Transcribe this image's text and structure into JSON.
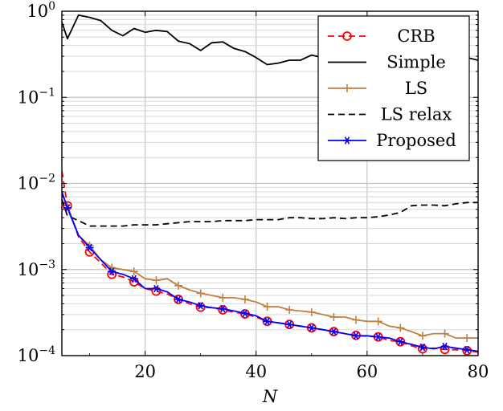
{
  "chart_data": {
    "type": "line",
    "title": "",
    "xlabel": "N",
    "ylabel": "",
    "xlim": [
      5,
      80
    ],
    "ylim": [
      0.0001,
      1
    ],
    "yscale": "log",
    "grid": true,
    "legend_position": "top-right",
    "x_ticks": [
      {
        "value": 20,
        "label": "20"
      },
      {
        "value": 40,
        "label": "40"
      },
      {
        "value": 60,
        "label": "60"
      },
      {
        "value": 80,
        "label": "80"
      }
    ],
    "y_ticks": [
      {
        "value": 1,
        "base": "10",
        "exp": "0"
      },
      {
        "value": 0.1,
        "base": "10",
        "exp": "−1"
      },
      {
        "value": 0.01,
        "base": "10",
        "exp": "−2"
      },
      {
        "value": 0.001,
        "base": "10",
        "exp": "−3"
      },
      {
        "value": 0.0001,
        "base": "10",
        "exp": "−4"
      }
    ],
    "series": [
      {
        "name": "CRB",
        "color": "#ff0000",
        "dash": "8,5",
        "marker": "circle",
        "x": [
          5,
          6,
          8,
          10,
          12,
          14,
          16,
          18,
          20,
          22,
          24,
          26,
          28,
          30,
          32,
          34,
          36,
          38,
          40,
          42,
          44,
          46,
          48,
          50,
          52,
          54,
          56,
          58,
          60,
          62,
          64,
          66,
          68,
          70,
          72,
          74,
          76,
          78,
          80
        ],
        "y": [
          0.014,
          0.0055,
          0.0024,
          0.0016,
          0.0012,
          0.00088,
          0.00082,
          0.00072,
          0.0006,
          0.00056,
          0.00052,
          0.00045,
          0.0004,
          0.000365,
          0.00036,
          0.00034,
          0.00032,
          0.000305,
          0.00028,
          0.00025,
          0.00024,
          0.00023,
          0.00022,
          0.00021,
          0.0002,
          0.00019,
          0.00018,
          0.000172,
          0.000168,
          0.000165,
          0.00015,
          0.000145,
          0.00013,
          0.00012,
          0.000122,
          0.000118,
          0.000117,
          0.000114,
          0.00011
        ],
        "marker_every": 2
      },
      {
        "name": "Simple",
        "color": "#000000",
        "dash": "",
        "marker": "none",
        "x": [
          5,
          6,
          8,
          10,
          12,
          14,
          16,
          18,
          20,
          22,
          24,
          26,
          28,
          30,
          32,
          34,
          36,
          38,
          40,
          42,
          44,
          46,
          48,
          50,
          52,
          54,
          56,
          58,
          60,
          62,
          64,
          66,
          68,
          70,
          72,
          74,
          76,
          78,
          80
        ],
        "y": [
          0.75,
          0.48,
          0.9,
          0.85,
          0.78,
          0.6,
          0.52,
          0.63,
          0.57,
          0.6,
          0.58,
          0.45,
          0.42,
          0.35,
          0.43,
          0.44,
          0.37,
          0.34,
          0.29,
          0.24,
          0.25,
          0.27,
          0.27,
          0.31,
          0.29,
          0.32,
          0.3,
          0.31,
          0.29,
          0.3,
          0.31,
          0.3,
          0.3,
          0.29,
          0.3,
          0.29,
          0.3,
          0.29,
          0.27
        ]
      },
      {
        "name": "LS",
        "color": "#c08040",
        "dash": "",
        "marker": "plus",
        "x": [
          5,
          6,
          8,
          10,
          12,
          14,
          16,
          18,
          20,
          22,
          24,
          26,
          28,
          30,
          32,
          34,
          36,
          38,
          40,
          42,
          44,
          46,
          48,
          50,
          52,
          54,
          56,
          58,
          60,
          62,
          64,
          66,
          68,
          70,
          72,
          74,
          76,
          78,
          80
        ],
        "y": [
          0.0075,
          0.0055,
          0.0025,
          0.0019,
          0.0013,
          0.00105,
          0.001,
          0.00095,
          0.00078,
          0.00075,
          0.00078,
          0.00065,
          0.00058,
          0.00053,
          0.0005,
          0.00047,
          0.00047,
          0.00045,
          0.00042,
          0.00037,
          0.00037,
          0.00034,
          0.00033,
          0.00032,
          0.0003,
          0.00028,
          0.00028,
          0.00026,
          0.00025,
          0.00025,
          0.00022,
          0.00021,
          0.00019,
          0.00017,
          0.00018,
          0.00018,
          0.00016,
          0.00016,
          0.00016
        ],
        "marker_every": 2
      },
      {
        "name": "LS relax",
        "color": "#000000",
        "dash": "8,5",
        "marker": "none",
        "x": [
          5,
          6,
          8,
          10,
          12,
          14,
          16,
          18,
          20,
          22,
          24,
          26,
          28,
          30,
          32,
          34,
          36,
          38,
          40,
          42,
          44,
          46,
          48,
          50,
          52,
          54,
          56,
          58,
          60,
          62,
          64,
          66,
          68,
          70,
          72,
          74,
          76,
          78,
          80
        ],
        "y": [
          0.0065,
          0.0042,
          0.0037,
          0.0032,
          0.0032,
          0.0032,
          0.0032,
          0.0033,
          0.0033,
          0.0033,
          0.0034,
          0.0035,
          0.0036,
          0.0036,
          0.0036,
          0.0037,
          0.0037,
          0.0037,
          0.0038,
          0.0038,
          0.0038,
          0.004,
          0.004,
          0.0039,
          0.0039,
          0.004,
          0.0039,
          0.004,
          0.004,
          0.0041,
          0.0043,
          0.0046,
          0.0055,
          0.0056,
          0.0056,
          0.0055,
          0.0058,
          0.006,
          0.006
        ]
      },
      {
        "name": "Proposed",
        "color": "#0000ff",
        "dash": "",
        "marker": "star",
        "x": [
          5,
          6,
          8,
          10,
          12,
          14,
          16,
          18,
          20,
          22,
          24,
          26,
          28,
          30,
          32,
          34,
          36,
          38,
          40,
          42,
          44,
          46,
          48,
          50,
          52,
          54,
          56,
          58,
          60,
          62,
          64,
          66,
          68,
          70,
          72,
          74,
          76,
          78,
          80
        ],
        "y": [
          0.008,
          0.0052,
          0.0025,
          0.0018,
          0.0013,
          0.00095,
          0.00088,
          0.00078,
          0.0006,
          0.0006,
          0.00055,
          0.00045,
          0.00042,
          0.00038,
          0.00036,
          0.00035,
          0.00033,
          0.00031,
          0.00029,
          0.00025,
          0.00024,
          0.00023,
          0.00022,
          0.00021,
          0.0002,
          0.00019,
          0.00018,
          0.00017,
          0.00017,
          0.000165,
          0.00016,
          0.000145,
          0.000135,
          0.000125,
          0.00012,
          0.000128,
          0.000122,
          0.000117,
          0.000112
        ],
        "marker_every": 2
      }
    ]
  }
}
